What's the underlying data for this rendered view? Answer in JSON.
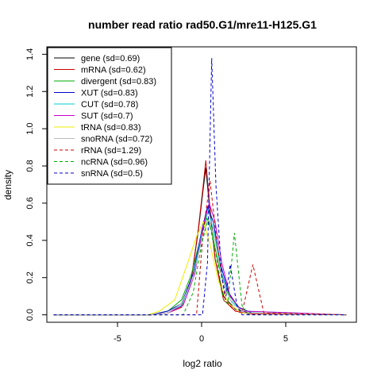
{
  "chart_data": {
    "type": "line",
    "title": "number read ratio rad50.G1/mre11-H125.G1",
    "xlabel": "log2 ratio",
    "ylabel": "density",
    "xlim": [
      -9.2,
      9.2
    ],
    "ylim": [
      -0.04,
      1.44
    ],
    "xticks": [
      -5,
      0,
      5
    ],
    "yticks": [
      0.0,
      0.2,
      0.4,
      0.6,
      0.8,
      1.0,
      1.2,
      1.4
    ],
    "xtick_labels": [
      "-5",
      "0",
      "5"
    ],
    "ytick_labels": [
      "0.0",
      "0.2",
      "0.4",
      "0.6",
      "0.8",
      "1.0",
      "1.2",
      "1.4"
    ],
    "grid": false,
    "legend_position": "top-left",
    "series": [
      {
        "name": "gene (sd=0.69)",
        "color": "#000000",
        "dash": "solid",
        "points": [
          [
            -8.8,
            0
          ],
          [
            -3,
            0
          ],
          [
            -2,
            0.01
          ],
          [
            -1.2,
            0.05
          ],
          [
            -0.6,
            0.2
          ],
          [
            -0.2,
            0.45
          ],
          [
            0.1,
            0.68
          ],
          [
            0.25,
            0.79
          ],
          [
            0.45,
            0.6
          ],
          [
            0.8,
            0.3
          ],
          [
            1.3,
            0.1
          ],
          [
            2,
            0.03
          ],
          [
            2.8,
            0.01
          ],
          [
            8.6,
            0
          ]
        ]
      },
      {
        "name": "mRNA (sd=0.62)",
        "color": "#cc0000",
        "dash": "solid",
        "points": [
          [
            -8.8,
            0
          ],
          [
            -3,
            0
          ],
          [
            -2,
            0.01
          ],
          [
            -1.2,
            0.04
          ],
          [
            -0.6,
            0.2
          ],
          [
            -0.2,
            0.46
          ],
          [
            0.1,
            0.7
          ],
          [
            0.25,
            0.83
          ],
          [
            0.45,
            0.62
          ],
          [
            0.8,
            0.3
          ],
          [
            1.3,
            0.08
          ],
          [
            2,
            0.02
          ],
          [
            2.8,
            0.005
          ],
          [
            8.6,
            0
          ]
        ]
      },
      {
        "name": "divergent (sd=0.83)",
        "color": "#00aa00",
        "dash": "solid",
        "points": [
          [
            -8.8,
            0
          ],
          [
            -3,
            0
          ],
          [
            -2,
            0.02
          ],
          [
            -1.2,
            0.08
          ],
          [
            -0.6,
            0.22
          ],
          [
            -0.1,
            0.4
          ],
          [
            0.3,
            0.52
          ],
          [
            0.6,
            0.45
          ],
          [
            1,
            0.27
          ],
          [
            1.5,
            0.12
          ],
          [
            2.2,
            0.04
          ],
          [
            3,
            0.01
          ],
          [
            8.6,
            0
          ]
        ]
      },
      {
        "name": "XUT (sd=0.83)",
        "color": "#0000cc",
        "dash": "solid",
        "points": [
          [
            -8.8,
            0
          ],
          [
            -3,
            0
          ],
          [
            -2,
            0.02
          ],
          [
            -1.2,
            0.06
          ],
          [
            -0.5,
            0.22
          ],
          [
            0,
            0.45
          ],
          [
            0.35,
            0.58
          ],
          [
            0.7,
            0.5
          ],
          [
            1.1,
            0.28
          ],
          [
            1.6,
            0.12
          ],
          [
            2.2,
            0.04
          ],
          [
            3,
            0.01
          ],
          [
            8.6,
            0
          ]
        ]
      },
      {
        "name": "CUT (sd=0.78)",
        "color": "#00cccc",
        "dash": "solid",
        "points": [
          [
            -8.8,
            0
          ],
          [
            -3,
            0
          ],
          [
            -2,
            0.01
          ],
          [
            -1.2,
            0.05
          ],
          [
            -0.5,
            0.2
          ],
          [
            0,
            0.44
          ],
          [
            0.4,
            0.56
          ],
          [
            0.8,
            0.42
          ],
          [
            1.2,
            0.22
          ],
          [
            1.7,
            0.08
          ],
          [
            2.4,
            0.02
          ],
          [
            8.6,
            0
          ]
        ]
      },
      {
        "name": "SUT (sd=0.7)",
        "color": "#cc00cc",
        "dash": "solid",
        "points": [
          [
            -8.8,
            0
          ],
          [
            -3,
            0
          ],
          [
            -2,
            0.01
          ],
          [
            -1.1,
            0.05
          ],
          [
            -0.4,
            0.22
          ],
          [
            0.1,
            0.48
          ],
          [
            0.45,
            0.6
          ],
          [
            0.8,
            0.5
          ],
          [
            1.2,
            0.28
          ],
          [
            1.7,
            0.1
          ],
          [
            2.4,
            0.02
          ],
          [
            8.6,
            0
          ]
        ]
      },
      {
        "name": "tRNA (sd=0.83)",
        "color": "#eeee00",
        "dash": "solid",
        "points": [
          [
            -8.8,
            0
          ],
          [
            -3.2,
            0
          ],
          [
            -2.5,
            0.02
          ],
          [
            -1.6,
            0.08
          ],
          [
            -0.9,
            0.26
          ],
          [
            -0.3,
            0.42
          ],
          [
            0.1,
            0.5
          ],
          [
            0.5,
            0.38
          ],
          [
            1,
            0.18
          ],
          [
            1.6,
            0.06
          ],
          [
            2.4,
            0.01
          ],
          [
            8.6,
            0
          ]
        ]
      },
      {
        "name": "snoRNA (sd=0.72)",
        "color": "#bbbbbb",
        "dash": "solid",
        "points": [
          [
            -8.8,
            0
          ],
          [
            -3,
            0
          ],
          [
            -2,
            0.01
          ],
          [
            -1.2,
            0.06
          ],
          [
            -0.5,
            0.2
          ],
          [
            0,
            0.4
          ],
          [
            0.4,
            0.52
          ],
          [
            0.8,
            0.4
          ],
          [
            1.2,
            0.2
          ],
          [
            1.8,
            0.06
          ],
          [
            2.6,
            0.01
          ],
          [
            8.6,
            0
          ]
        ]
      },
      {
        "name": "rRNA (sd=1.29)",
        "color": "#cc0000",
        "dash": "dashed",
        "points": [
          [
            -8.8,
            0
          ],
          [
            -0.3,
            0
          ],
          [
            0.1,
            0.45
          ],
          [
            0.5,
            0.72
          ],
          [
            0.9,
            0.4
          ],
          [
            1.4,
            0.08
          ],
          [
            2,
            0.02
          ],
          [
            2.4,
            0.01
          ],
          [
            3.05,
            0.27
          ],
          [
            3.7,
            0.01
          ],
          [
            8.6,
            0
          ]
        ]
      },
      {
        "name": "ncRNA (sd=0.96)",
        "color": "#00aa00",
        "dash": "dashed",
        "points": [
          [
            -8.8,
            0
          ],
          [
            -1.1,
            0
          ],
          [
            -0.5,
            0.12
          ],
          [
            0,
            0.38
          ],
          [
            0.4,
            0.52
          ],
          [
            0.9,
            0.3
          ],
          [
            1.3,
            0.08
          ],
          [
            1.55,
            0.06
          ],
          [
            1.95,
            0.44
          ],
          [
            2.4,
            0.05
          ],
          [
            2.8,
            0
          ],
          [
            8.6,
            0
          ]
        ]
      },
      {
        "name": "snRNA (sd=0.5)",
        "color": "#0000cc",
        "dash": "dashed",
        "points": [
          [
            -8.8,
            0
          ],
          [
            0.05,
            0
          ],
          [
            0.35,
            0.28
          ],
          [
            0.6,
            1.38
          ],
          [
            0.85,
            0.7
          ],
          [
            1.2,
            0.2
          ],
          [
            1.45,
            0.1
          ],
          [
            1.7,
            0.27
          ],
          [
            2.1,
            0.05
          ],
          [
            2.4,
            0
          ],
          [
            8.6,
            0
          ]
        ]
      }
    ]
  }
}
